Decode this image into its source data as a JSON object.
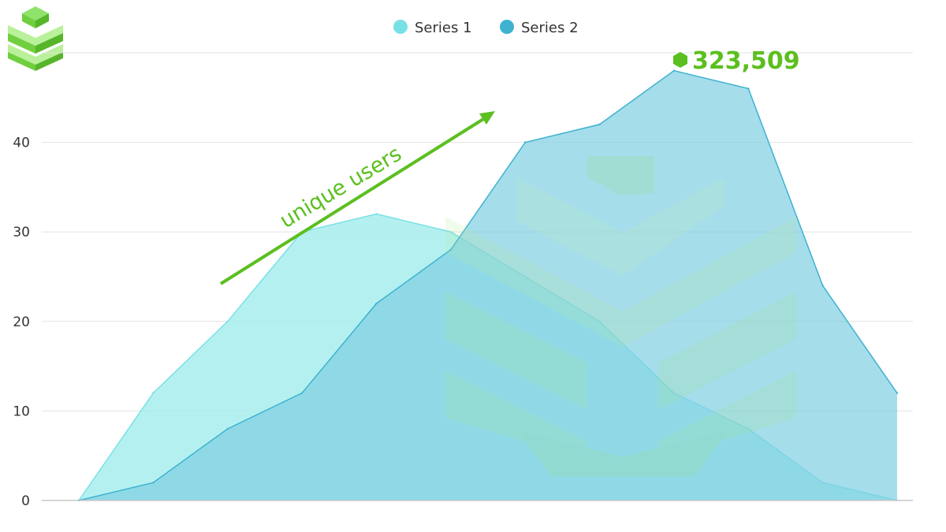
{
  "chart_data": {
    "type": "area",
    "x": [
      0,
      1,
      2,
      3,
      4,
      5,
      6,
      7,
      8,
      9,
      10,
      11
    ],
    "series": [
      {
        "name": "Series 1",
        "color": "#77e1e6",
        "fill": "#a3ecee",
        "values": [
          0,
          12,
          20,
          30,
          32,
          30,
          25,
          20,
          12,
          8,
          2,
          0
        ]
      },
      {
        "name": "Series 2",
        "color": "#3eb2d0",
        "fill": "#7fcee3",
        "values": [
          0,
          2,
          8,
          12,
          22,
          28,
          40,
          42,
          48,
          46,
          24,
          12
        ]
      }
    ],
    "ylim": [
      0,
      50
    ],
    "y_ticks": [
      "0",
      "10",
      "20",
      "30",
      "40"
    ],
    "grid": true,
    "legend": "top-center",
    "annotations": {
      "arrow_label": "unique users",
      "callout_value": "323,509"
    },
    "accent_color": "#5bbf1f"
  },
  "logo": {
    "name": "stacked-cube-logo",
    "color": "#7ed957"
  }
}
